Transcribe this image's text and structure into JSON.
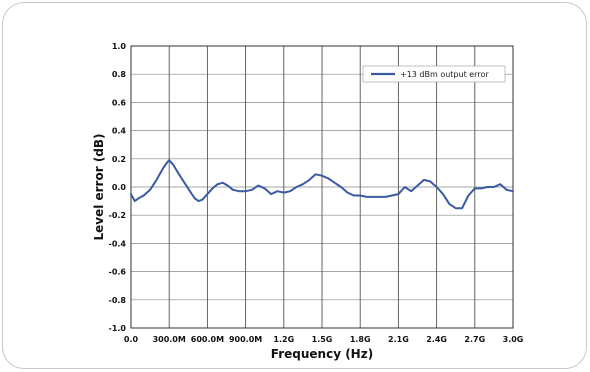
{
  "chart_data": {
    "type": "line",
    "title": "",
    "xlabel": "Frequency (Hz)",
    "ylabel": "Level error (dB)",
    "xlim": [
      0,
      3000000000
    ],
    "ylim": [
      -1.0,
      1.0
    ],
    "x_ticks": [
      0,
      300000000,
      600000000,
      900000000,
      1200000000,
      1500000000,
      1800000000,
      2100000000,
      2400000000,
      2700000000,
      3000000000
    ],
    "x_tick_labels": [
      "0.0",
      "300.0M",
      "600.0M",
      "900.0M",
      "1.2G",
      "1.5G",
      "1.8G",
      "2.1G",
      "2.4G",
      "2.7G",
      "3.0G"
    ],
    "y_ticks": [
      1.0,
      0.8,
      0.6,
      0.4,
      0.2,
      0.0,
      -0.2,
      -0.4,
      -0.6,
      -0.8,
      -1.0
    ],
    "y_tick_labels": [
      "1.0",
      "0.8",
      "0.6",
      "0.4",
      "0.2",
      "0.0",
      "-0.2",
      "-0.4",
      "-0.6",
      "-0.8",
      "-1.0"
    ],
    "grid": true,
    "legend_position": "top-right",
    "series": [
      {
        "name": "+13 dBm output error",
        "color": "#3c5aa0",
        "x": [
          0,
          30000000,
          60000000,
          100000000,
          150000000,
          200000000,
          250000000,
          280000000,
          300000000,
          330000000,
          370000000,
          420000000,
          470000000,
          500000000,
          530000000,
          560000000,
          600000000,
          640000000,
          680000000,
          720000000,
          760000000,
          800000000,
          850000000,
          900000000,
          950000000,
          1000000000,
          1050000000,
          1100000000,
          1150000000,
          1200000000,
          1250000000,
          1300000000,
          1350000000,
          1400000000,
          1450000000,
          1500000000,
          1550000000,
          1600000000,
          1650000000,
          1700000000,
          1750000000,
          1800000000,
          1850000000,
          1900000000,
          1950000000,
          2000000000,
          2050000000,
          2100000000,
          2150000000,
          2200000000,
          2250000000,
          2300000000,
          2350000000,
          2400000000,
          2450000000,
          2500000000,
          2550000000,
          2600000000,
          2650000000,
          2700000000,
          2750000000,
          2800000000,
          2850000000,
          2900000000,
          2950000000,
          3000000000
        ],
        "y": [
          -0.05,
          -0.1,
          -0.08,
          -0.06,
          -0.02,
          0.05,
          0.13,
          0.17,
          0.19,
          0.16,
          0.1,
          0.03,
          -0.04,
          -0.08,
          -0.1,
          -0.09,
          -0.05,
          -0.01,
          0.02,
          0.03,
          0.01,
          -0.02,
          -0.03,
          -0.03,
          -0.02,
          0.01,
          -0.01,
          -0.05,
          -0.03,
          -0.04,
          -0.03,
          0.0,
          0.02,
          0.05,
          0.09,
          0.08,
          0.06,
          0.03,
          0.0,
          -0.04,
          -0.06,
          -0.06,
          -0.07,
          -0.07,
          -0.07,
          -0.07,
          -0.06,
          -0.05,
          0.0,
          -0.03,
          0.01,
          0.05,
          0.04,
          0.0,
          -0.05,
          -0.12,
          -0.15,
          -0.15,
          -0.06,
          -0.01,
          -0.01,
          0.0,
          0.0,
          0.02,
          -0.02,
          -0.03
        ]
      }
    ]
  }
}
